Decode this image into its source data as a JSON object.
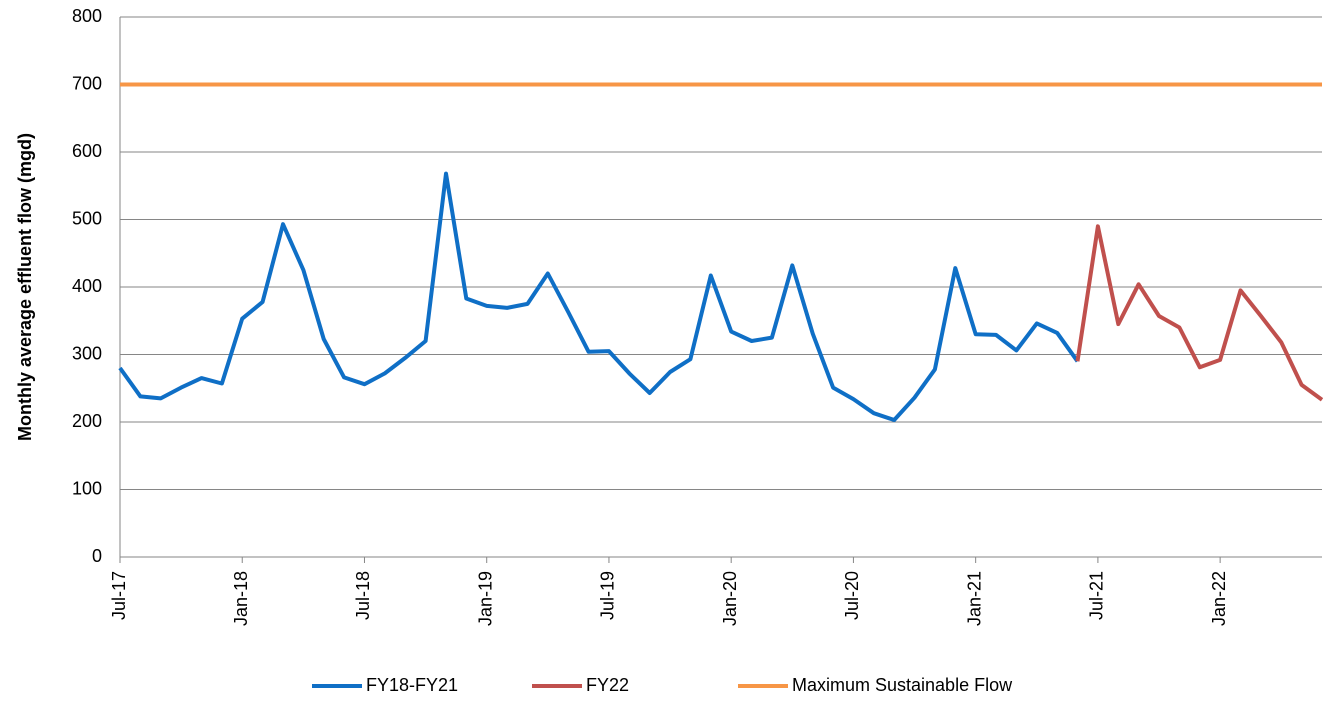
{
  "chart_data": {
    "type": "line",
    "y_label": "Monthly average effluent flow (mgd)",
    "categories": [
      "Jul-17",
      null,
      null,
      null,
      null,
      null,
      "Jan-18",
      null,
      null,
      null,
      null,
      null,
      "Jul-18",
      null,
      null,
      null,
      null,
      null,
      "Jan-19",
      null,
      null,
      null,
      null,
      null,
      "Jul-19",
      null,
      null,
      null,
      null,
      null,
      "Jan-20",
      null,
      null,
      null,
      null,
      null,
      "Jul-20",
      null,
      null,
      null,
      null,
      null,
      "Jan-21",
      null,
      null,
      null,
      null,
      null,
      "Jul-21",
      null,
      null,
      null,
      null,
      null,
      "Jan-22",
      null,
      null,
      null,
      null,
      null
    ],
    "series": [
      {
        "name": "FY18-FY21",
        "color": "#0f6fc6",
        "values": [
          280,
          238,
          235,
          251,
          265,
          257,
          353,
          378,
          493,
          425,
          323,
          266,
          256,
          272,
          295,
          320,
          568,
          383,
          372,
          369,
          375,
          420,
          363,
          304,
          305,
          272,
          243,
          274,
          293,
          417,
          334,
          320,
          325,
          432,
          331,
          251,
          234,
          213,
          203,
          236,
          278,
          428,
          330,
          329,
          306,
          346,
          332,
          290,
          null,
          null,
          null,
          null,
          null,
          null,
          null,
          null,
          null,
          null,
          null,
          null
        ]
      },
      {
        "name": "FY22",
        "color": "#c0504d",
        "values": [
          null,
          null,
          null,
          null,
          null,
          null,
          null,
          null,
          null,
          null,
          null,
          null,
          null,
          null,
          null,
          null,
          null,
          null,
          null,
          null,
          null,
          null,
          null,
          null,
          null,
          null,
          null,
          null,
          null,
          null,
          null,
          null,
          null,
          null,
          null,
          null,
          null,
          null,
          null,
          null,
          null,
          null,
          null,
          null,
          null,
          null,
          null,
          290,
          490,
          345,
          404,
          357,
          340,
          281,
          292,
          395,
          357,
          318,
          255,
          233
        ]
      },
      {
        "name": "Maximum Sustainable Flow",
        "color": "#f79646",
        "values": [
          700,
          700,
          700,
          700,
          700,
          700,
          700,
          700,
          700,
          700,
          700,
          700,
          700,
          700,
          700,
          700,
          700,
          700,
          700,
          700,
          700,
          700,
          700,
          700,
          700,
          700,
          700,
          700,
          700,
          700,
          700,
          700,
          700,
          700,
          700,
          700,
          700,
          700,
          700,
          700,
          700,
          700,
          700,
          700,
          700,
          700,
          700,
          700,
          700,
          700,
          700,
          700,
          700,
          700,
          700,
          700,
          700,
          700,
          700,
          700
        ]
      }
    ],
    "ylim": [
      0,
      800
    ],
    "yticks": [
      0,
      100,
      200,
      300,
      400,
      500,
      600,
      700,
      800
    ],
    "grid": true,
    "legend": "bottom"
  }
}
